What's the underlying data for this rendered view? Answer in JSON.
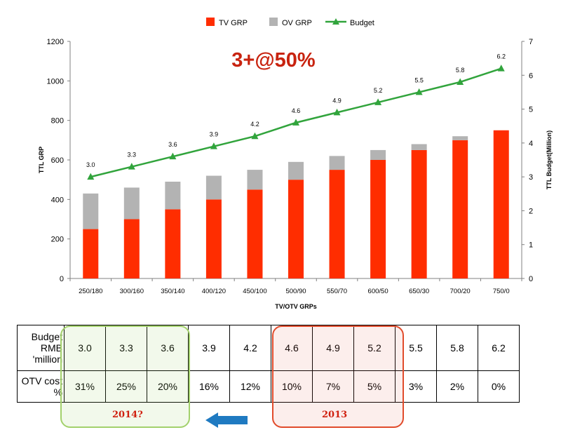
{
  "chart_data": {
    "type": "bar",
    "title": "3+@50%",
    "categories": [
      "250/180",
      "300/160",
      "350/140",
      "400/120",
      "450/100",
      "500/90",
      "550/70",
      "600/50",
      "650/30",
      "700/20",
      "750/0"
    ],
    "series": [
      {
        "name": "TV GRP",
        "type": "bar",
        "stack": "grp",
        "color": "#ff2d00",
        "values": [
          250,
          300,
          350,
          400,
          450,
          500,
          550,
          600,
          650,
          700,
          750
        ]
      },
      {
        "name": "OV GRP",
        "type": "bar",
        "stack": "grp",
        "color": "#b3b3b3",
        "values": [
          180,
          160,
          140,
          120,
          100,
          90,
          70,
          50,
          30,
          20,
          0
        ]
      },
      {
        "name": "Budget",
        "type": "line",
        "axis": "right",
        "color": "#31a43c",
        "marker": "triangle",
        "values": [
          3.0,
          3.3,
          3.6,
          3.9,
          4.2,
          4.6,
          4.9,
          5.2,
          5.5,
          5.8,
          6.2
        ]
      }
    ],
    "budget_labels": [
      "3.0",
      "3.3",
      "3.6",
      "3.9",
      "4.2",
      "4.6",
      "4.9",
      "5.2",
      "5.5",
      "5.8",
      "6.2"
    ],
    "xlabel": "TV/OTV GRPs",
    "ylabel": "TTL GRP",
    "y2label": "TTL Budget(Million)",
    "ylim": [
      0,
      1200
    ],
    "yticks": [
      "0",
      "200",
      "400",
      "600",
      "800",
      "1000",
      "1200"
    ],
    "y2lim": [
      0,
      7
    ],
    "y2ticks": [
      "0",
      "1",
      "2",
      "3",
      "4",
      "5",
      "6",
      "7"
    ],
    "legend_position": "top",
    "grid": false
  },
  "table": {
    "row1_header": [
      "Budget",
      "RMB",
      "'million"
    ],
    "row1_values": [
      "3.0",
      "3.3",
      "3.6",
      "3.9",
      "4.2",
      "4.6",
      "4.9",
      "5.2",
      "5.5",
      "5.8",
      "6.2"
    ],
    "row2_header": [
      "OTV cost",
      "%"
    ],
    "row2_values": [
      "31%",
      "25%",
      "20%",
      "16%",
      "12%",
      "10%",
      "7%",
      "5%",
      "3%",
      "2%",
      "0%"
    ]
  },
  "annotations": {
    "box_2014_label": "2014?",
    "box_2013_label": "2013",
    "box_2014_color": "#a3d16c",
    "box_2013_color": "#e14b2b",
    "arrow_color": "#1f7ac1",
    "arrow_icon": "left-arrow-icon"
  }
}
